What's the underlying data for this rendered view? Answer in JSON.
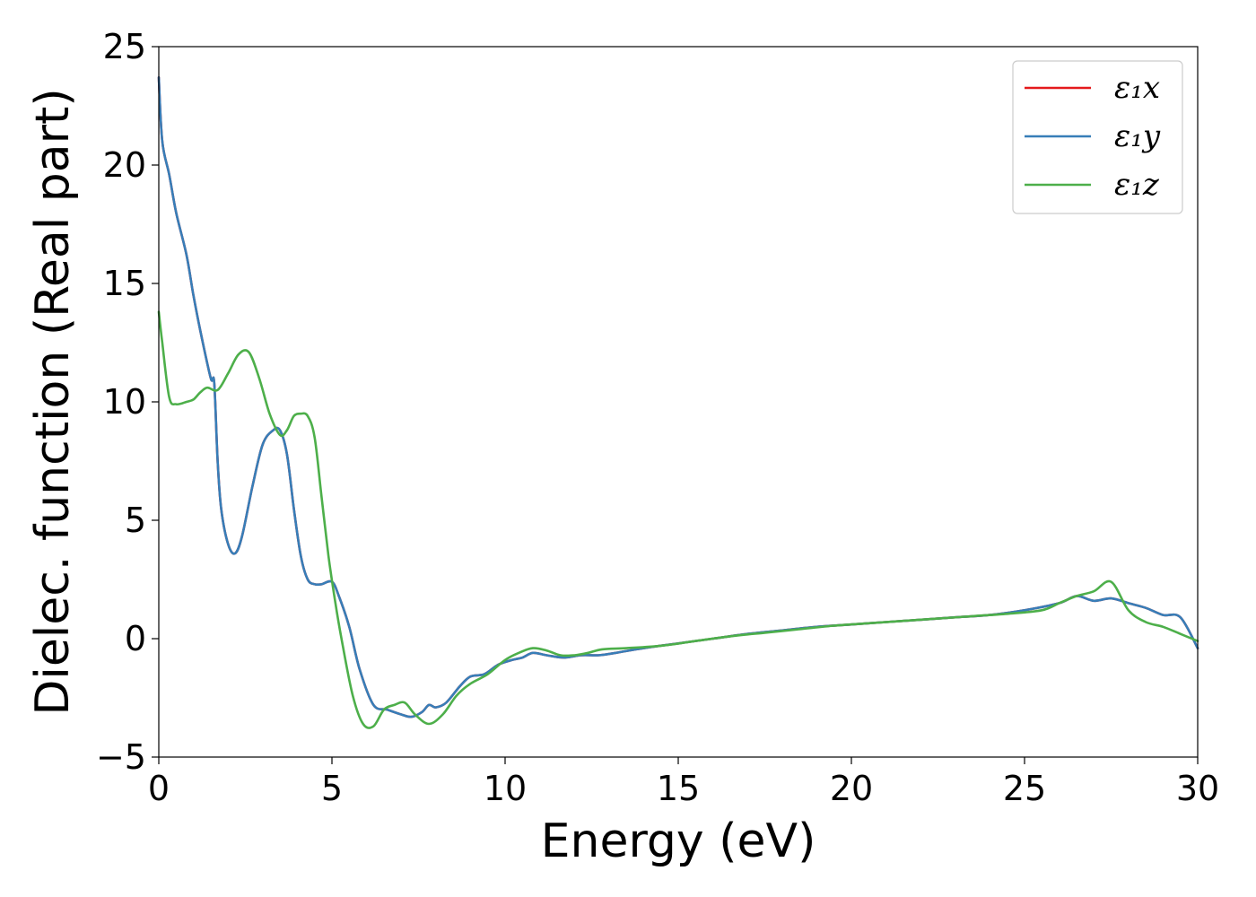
{
  "chart_data": {
    "type": "line",
    "xlabel": "Energy (eV)",
    "ylabel": "Dielec. function (Real part)",
    "xlim": [
      0,
      30
    ],
    "ylim": [
      -5,
      25
    ],
    "xticks": [
      0,
      5,
      10,
      15,
      20,
      25,
      30
    ],
    "yticks": [
      -5,
      0,
      5,
      10,
      15,
      20,
      25
    ],
    "xtick_labels": [
      "0",
      "5",
      "10",
      "15",
      "20",
      "25",
      "30"
    ],
    "ytick_labels": [
      "−5",
      "0",
      "5",
      "10",
      "15",
      "20",
      "25"
    ],
    "grid": false,
    "legend_position": "top-right",
    "series": [
      {
        "name": "ε₁x",
        "color": "#e41a1c",
        "x": [
          0,
          0.1,
          0.3,
          0.5,
          0.8,
          1.0,
          1.2,
          1.5,
          1.6,
          1.7,
          1.8,
          2.0,
          2.2,
          2.4,
          2.7,
          3.0,
          3.3,
          3.5,
          3.7,
          3.9,
          4.1,
          4.3,
          4.5,
          4.7,
          5.0,
          5.2,
          5.5,
          5.8,
          6.2,
          6.6,
          7.0,
          7.3,
          7.6,
          7.8,
          8.0,
          8.3,
          8.7,
          9.0,
          9.4,
          9.8,
          10.2,
          10.5,
          10.8,
          11.2,
          11.7,
          12.2,
          12.7,
          13.2,
          14,
          15,
          16,
          17,
          18,
          19,
          20,
          21,
          22,
          23,
          24,
          25,
          26,
          26.5,
          27,
          27.5,
          28,
          28.5,
          29,
          29.5,
          30
        ],
        "y": [
          23.7,
          21.0,
          19.6,
          18.0,
          16.2,
          14.5,
          13.0,
          11.0,
          10.8,
          7.5,
          5.5,
          4.0,
          3.6,
          4.3,
          6.4,
          8.2,
          8.8,
          8.8,
          7.8,
          5.5,
          3.5,
          2.5,
          2.3,
          2.3,
          2.4,
          1.8,
          0.5,
          -1.3,
          -2.8,
          -3.0,
          -3.2,
          -3.3,
          -3.1,
          -2.8,
          -2.9,
          -2.7,
          -2.0,
          -1.6,
          -1.5,
          -1.1,
          -0.9,
          -0.8,
          -0.6,
          -0.7,
          -0.8,
          -0.7,
          -0.7,
          -0.6,
          -0.4,
          -0.2,
          0.0,
          0.2,
          0.35,
          0.5,
          0.6,
          0.7,
          0.8,
          0.9,
          1.0,
          1.2,
          1.5,
          1.8,
          1.6,
          1.7,
          1.5,
          1.3,
          1.0,
          0.9,
          -0.4
        ]
      },
      {
        "name": "ε₁y",
        "color": "#377eb8",
        "x": [
          0,
          0.1,
          0.3,
          0.5,
          0.8,
          1.0,
          1.2,
          1.5,
          1.6,
          1.7,
          1.8,
          2.0,
          2.2,
          2.4,
          2.7,
          3.0,
          3.3,
          3.5,
          3.7,
          3.9,
          4.1,
          4.3,
          4.5,
          4.7,
          5.0,
          5.2,
          5.5,
          5.8,
          6.2,
          6.6,
          7.0,
          7.3,
          7.6,
          7.8,
          8.0,
          8.3,
          8.7,
          9.0,
          9.4,
          9.8,
          10.2,
          10.5,
          10.8,
          11.2,
          11.7,
          12.2,
          12.7,
          13.2,
          14,
          15,
          16,
          17,
          18,
          19,
          20,
          21,
          22,
          23,
          24,
          25,
          26,
          26.5,
          27,
          27.5,
          28,
          28.5,
          29,
          29.5,
          30
        ],
        "y": [
          23.7,
          21.0,
          19.6,
          18.0,
          16.2,
          14.5,
          13.0,
          11.0,
          10.8,
          7.5,
          5.5,
          4.0,
          3.6,
          4.3,
          6.4,
          8.2,
          8.8,
          8.8,
          7.8,
          5.5,
          3.5,
          2.5,
          2.3,
          2.3,
          2.4,
          1.8,
          0.5,
          -1.3,
          -2.8,
          -3.0,
          -3.2,
          -3.3,
          -3.1,
          -2.8,
          -2.9,
          -2.7,
          -2.0,
          -1.6,
          -1.5,
          -1.1,
          -0.9,
          -0.8,
          -0.6,
          -0.7,
          -0.8,
          -0.7,
          -0.7,
          -0.6,
          -0.4,
          -0.2,
          0.0,
          0.2,
          0.35,
          0.5,
          0.6,
          0.7,
          0.8,
          0.9,
          1.0,
          1.2,
          1.5,
          1.8,
          1.6,
          1.7,
          1.5,
          1.3,
          1.0,
          0.9,
          -0.4
        ]
      },
      {
        "name": "ε₁z",
        "color": "#4daf4a",
        "x": [
          0,
          0.1,
          0.3,
          0.5,
          0.8,
          1.0,
          1.2,
          1.4,
          1.7,
          2.0,
          2.3,
          2.6,
          2.9,
          3.2,
          3.5,
          3.7,
          3.9,
          4.1,
          4.3,
          4.5,
          4.7,
          4.9,
          5.1,
          5.3,
          5.6,
          5.9,
          6.2,
          6.5,
          6.8,
          7.1,
          7.4,
          7.8,
          8.2,
          8.6,
          9.0,
          9.5,
          10.0,
          10.4,
          10.8,
          11.2,
          11.6,
          12.0,
          12.4,
          12.8,
          13.5,
          14.5,
          15.5,
          16.5,
          17.5,
          18.5,
          19.5,
          20.5,
          21.5,
          22.5,
          23.5,
          24.5,
          25.5,
          26.0,
          26.5,
          27.0,
          27.5,
          28.0,
          28.5,
          29.0,
          29.5,
          30
        ],
        "y": [
          13.8,
          12.5,
          10.2,
          9.9,
          10.0,
          10.1,
          10.4,
          10.6,
          10.5,
          11.2,
          12.0,
          12.1,
          11.0,
          9.5,
          8.6,
          8.8,
          9.4,
          9.5,
          9.4,
          8.5,
          6.0,
          3.5,
          1.5,
          -0.2,
          -2.4,
          -3.6,
          -3.7,
          -3.0,
          -2.8,
          -2.7,
          -3.2,
          -3.6,
          -3.2,
          -2.4,
          -1.9,
          -1.5,
          -0.9,
          -0.6,
          -0.4,
          -0.5,
          -0.7,
          -0.7,
          -0.6,
          -0.45,
          -0.4,
          -0.3,
          -0.1,
          0.1,
          0.25,
          0.4,
          0.55,
          0.65,
          0.75,
          0.85,
          0.95,
          1.05,
          1.2,
          1.5,
          1.8,
          2.0,
          2.4,
          1.2,
          0.7,
          0.5,
          0.2,
          -0.1
        ]
      }
    ]
  }
}
